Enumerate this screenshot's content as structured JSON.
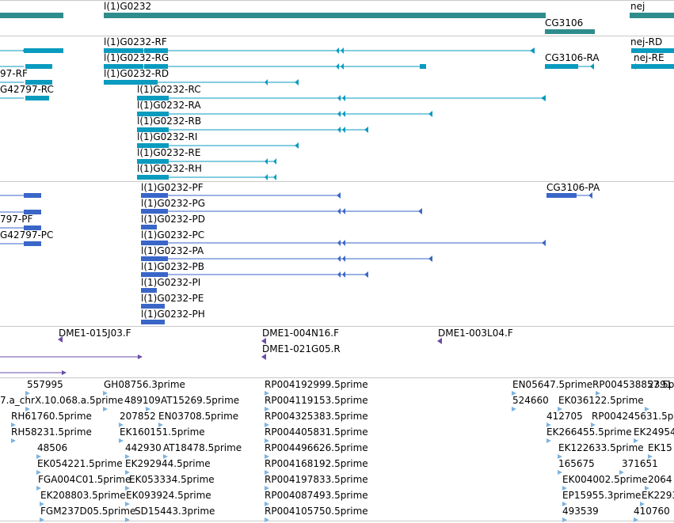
{
  "genes": {
    "labels": [
      "l(1)G0232",
      "CG3106",
      "nej"
    ]
  },
  "transcripts": {
    "labels": [
      "l(1)G0232-RF",
      "l(1)G0232-RG",
      "l(1)G0232-RD",
      "l(1)G0232-RC",
      "l(1)G0232-RA",
      "l(1)G0232-RB",
      "l(1)G0232-RI",
      "l(1)G0232-RE",
      "l(1)G0232-RH",
      "nej-RD",
      "nej-RE",
      "CG3106-RA",
      "97-RF",
      "G42797-RC"
    ]
  },
  "proteins": {
    "labels": [
      "l(1)G0232-PF",
      "l(1)G0232-PG",
      "l(1)G0232-PD",
      "l(1)G0232-PC",
      "l(1)G0232-PA",
      "l(1)G0232-PB",
      "l(1)G0232-PI",
      "l(1)G0232-PE",
      "l(1)G0232-PH",
      "CG3106-PA",
      "797-PF",
      "G42797-PC"
    ]
  },
  "clones": {
    "labels": [
      "DME1-015J03.F",
      "DME1-004N16.F",
      "DME1-021G05.R",
      "DME1-003L04.F"
    ]
  },
  "ests": {
    "labels": [
      "557995",
      "GH08756.3prime",
      "7.a_chrX.10.068.a.5prime",
      "489109",
      "AT15269.5prime",
      "RH61760.5prime",
      "207852",
      "EN03708.5prime",
      "RH58231.5prime",
      "EK160151.5prime",
      "48506",
      "442930",
      "AT18478.5prime",
      "EK054221.5prime",
      "EK292944.5prime",
      "FGA004C01.5prime",
      "EK053334.5prime",
      "EK208803.5prime",
      "EK093924.5prime",
      "FGM237D05.5prime",
      "SD15443.3prime",
      "RP004192999.5prime",
      "RP004119153.5prime",
      "RP004325383.5prime",
      "RP004405831.5prime",
      "RP004496626.5prime",
      "RP004168192.5prime",
      "RP004197833.5prime",
      "RP004087493.5prime",
      "RP004105750.5prime",
      "EN05647.5prime",
      "RP004538857.5prime",
      "2391",
      "524660",
      "EK036122.5prime",
      "412705",
      "RP004245631.5prime",
      "EK266455.5prime",
      "EK24954",
      "EK122633.5prime",
      "EK15",
      "165675",
      "371651",
      "EK004002.5prime",
      "2064",
      "EP15955.3prime",
      "EK2293",
      "493539",
      "410760"
    ]
  },
  "colors": {
    "gene": "#2f8c8c",
    "transcript": "#0a9bbf",
    "protein": "#3a66c8",
    "clone": "#6a4ca8",
    "est": "#7db3df",
    "divider": "#c8c8c8"
  }
}
